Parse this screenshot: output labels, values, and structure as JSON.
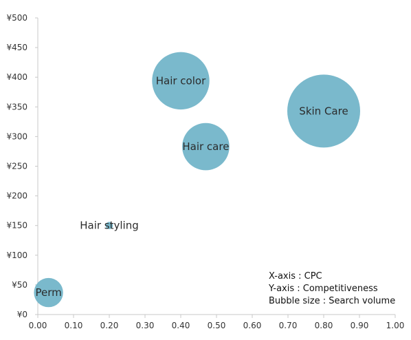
{
  "chart_data": {
    "type": "scatter",
    "subtype": "bubble",
    "title": "",
    "xlabel": "",
    "ylabel": "",
    "xlim": [
      0,
      1
    ],
    "ylim": [
      0,
      500
    ],
    "x_ticks": [
      0,
      0.1,
      0.2,
      0.3,
      0.4,
      0.5,
      0.6,
      0.7,
      0.8,
      0.9,
      1.0
    ],
    "x_tick_labels": [
      "0.00",
      "0.10",
      "0.20",
      "0.30",
      "0.40",
      "0.50",
      "0.60",
      "0.70",
      "0.80",
      "0.90",
      "1.00"
    ],
    "y_ticks": [
      0,
      50,
      100,
      150,
      200,
      250,
      300,
      350,
      400,
      450,
      500
    ],
    "y_tick_labels": [
      "¥0",
      "¥50",
      "¥100",
      "¥150",
      "¥200",
      "¥250",
      "¥300",
      "¥350",
      "¥400",
      "¥450",
      "¥500"
    ],
    "grid": false,
    "bubble_color": "#6fb3c8",
    "axis_color": "#c8c8c8",
    "points": [
      {
        "label": "Perm",
        "x": 0.03,
        "y": 37,
        "size": 16
      },
      {
        "label": "Hair styling",
        "x": 0.2,
        "y": 150,
        "size": 1
      },
      {
        "label": "Hair care",
        "x": 0.47,
        "y": 283,
        "size": 42
      },
      {
        "label": "Hair color",
        "x": 0.4,
        "y": 394,
        "size": 62
      },
      {
        "label": "Skin Care",
        "x": 0.8,
        "y": 343,
        "size": 100
      }
    ],
    "annotations": [
      "X-axis : CPC",
      "Y-axis : Competitiveness",
      "Bubble size : Search volume"
    ]
  }
}
